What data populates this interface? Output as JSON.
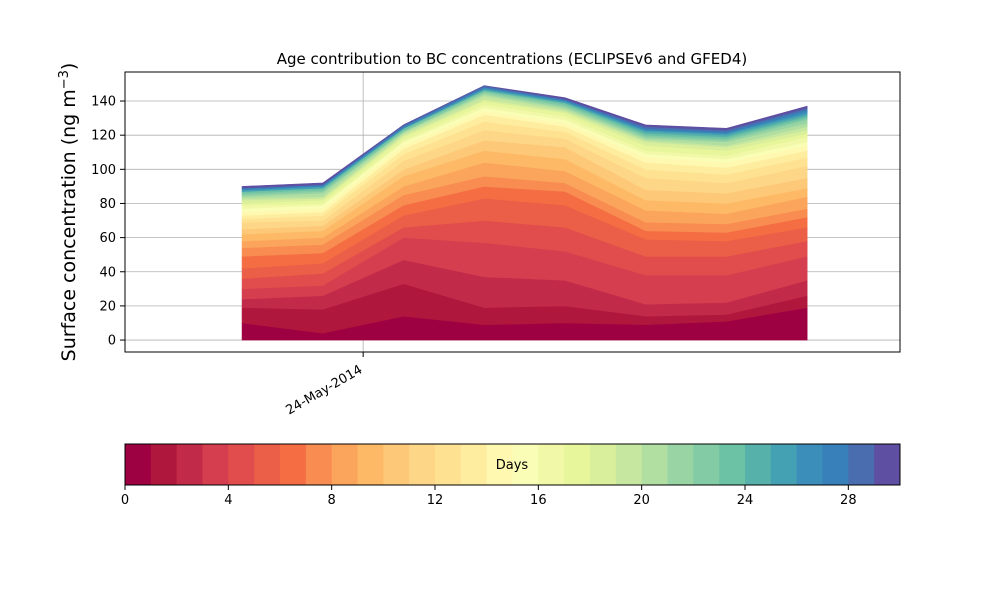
{
  "chart_data": {
    "type": "area",
    "title": "Age contribution to BC concentrations (ECLIPSEv6 and GFED4)",
    "ylabel": "Surface concentration (ng m",
    "ylabel_exponent": "−3",
    "ylabel_suffix": ")",
    "xlabel": "",
    "ylim": [
      -7,
      157
    ],
    "yticks": [
      0,
      20,
      40,
      60,
      80,
      100,
      120,
      140
    ],
    "xlim": [
      -1.45,
      8.15
    ],
    "x": [
      0,
      1,
      2,
      3,
      4,
      5,
      6,
      7
    ],
    "x_tick_positions": [
      1.5
    ],
    "x_tick_labels": [
      "24-May-2014"
    ],
    "grid": true,
    "stack_breakpoints": [
      [
        0,
        0,
        0,
        0,
        0,
        0,
        0,
        0
      ],
      [
        10,
        4,
        14,
        9,
        10,
        9,
        11,
        19
      ],
      [
        19,
        18,
        33,
        19,
        20,
        14,
        15,
        26
      ],
      [
        24,
        26,
        47,
        37,
        35,
        21,
        22,
        35
      ],
      [
        30,
        32,
        60,
        57,
        52,
        38,
        38,
        49
      ],
      [
        36,
        39,
        66,
        70,
        66,
        49,
        49,
        58
      ],
      [
        42,
        45,
        73,
        83,
        79,
        59,
        58,
        66
      ],
      [
        49,
        51,
        79,
        90,
        87,
        64,
        63,
        72
      ],
      [
        54,
        56,
        85,
        96,
        92,
        69,
        68,
        77
      ],
      [
        58,
        60,
        90,
        104,
        99,
        76,
        74,
        84
      ],
      [
        62,
        64,
        96,
        111,
        106,
        82,
        80,
        89
      ],
      [
        65,
        67,
        100,
        117,
        113,
        88,
        86,
        95
      ],
      [
        69,
        70,
        105,
        123,
        118,
        95,
        92,
        102
      ],
      [
        71,
        73,
        109,
        128,
        122,
        100,
        97,
        107
      ],
      [
        73,
        75,
        112,
        132,
        125,
        104,
        101,
        111
      ],
      [
        75,
        77,
        114,
        134,
        127,
        107,
        104,
        114
      ],
      [
        77,
        79,
        116,
        136,
        129,
        109,
        106,
        116
      ],
      [
        79,
        80,
        117,
        138,
        131,
        111,
        108,
        119
      ],
      [
        80,
        82,
        119,
        140,
        133,
        114,
        111,
        121
      ],
      [
        82,
        83,
        120,
        141,
        134,
        116,
        113,
        123
      ],
      [
        83,
        84,
        121,
        143,
        135,
        117,
        114,
        125
      ],
      [
        84,
        86,
        122,
        144,
        136,
        118,
        116,
        127
      ],
      [
        85,
        87,
        122,
        145,
        137,
        119,
        117,
        129
      ],
      [
        86,
        88,
        123,
        146,
        138,
        120,
        118,
        130
      ],
      [
        87,
        89,
        124,
        146,
        139,
        121,
        119,
        131
      ],
      [
        87,
        89,
        124,
        147,
        139,
        122,
        120,
        132
      ],
      [
        88,
        90,
        124,
        147,
        140,
        123,
        121,
        133
      ],
      [
        88,
        90,
        125,
        148,
        140,
        123,
        121,
        134
      ],
      [
        89,
        91,
        125,
        148,
        141,
        124,
        122,
        135
      ],
      [
        89,
        91,
        126,
        149,
        141,
        125,
        123,
        136
      ],
      [
        90,
        92,
        126,
        149,
        142,
        126,
        124,
        137
      ]
    ],
    "days": [
      0,
      1,
      2,
      3,
      4,
      5,
      6,
      7,
      8,
      9,
      10,
      11,
      12,
      13,
      14,
      15,
      16,
      17,
      18,
      19,
      20,
      21,
      22,
      23,
      24,
      25,
      26,
      27,
      28,
      29,
      30
    ],
    "colors": [
      "#9e0142",
      "#b0173d",
      "#c22a4a",
      "#d53e4f",
      "#e04d4c",
      "#eb5e47",
      "#f46d43",
      "#f88c51",
      "#fba55c",
      "#fdb965",
      "#fdc877",
      "#fed688",
      "#fee292",
      "#feed9f",
      "#fff8b0",
      "#fafdb6",
      "#f1f9a8",
      "#e7f59b",
      "#d9ef9c",
      "#c6e79f",
      "#b1dfa2",
      "#99d5a4",
      "#82cba5",
      "#6cc2a4",
      "#56b1ab",
      "#44a0b3",
      "#3a8eb9",
      "#3880b9",
      "#4a6db0",
      "#5e4fa2"
    ],
    "colorbar": {
      "label": "Days",
      "range": [
        0,
        30
      ],
      "ticks": [
        0,
        4,
        8,
        12,
        16,
        20,
        24,
        28
      ]
    }
  }
}
